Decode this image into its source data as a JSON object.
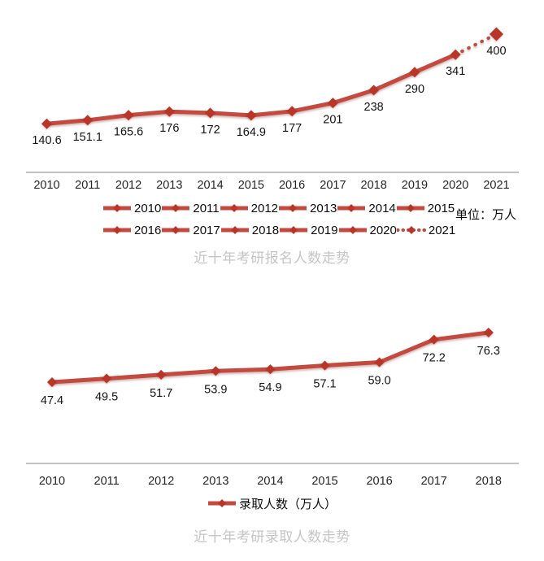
{
  "colors": {
    "line": "#C4493E",
    "marker": "#B93527",
    "axis": "#9E9E9E",
    "tick_text": "#262626",
    "value_text": "#141414",
    "title_text": "#C5C5C5",
    "legend_text": "#0D0D0D"
  },
  "chart_data": [
    {
      "type": "line",
      "title": "近十年考研报名人数走势",
      "unit_label": "单位：万人",
      "categories": [
        "2010",
        "2011",
        "2012",
        "2013",
        "2014",
        "2015",
        "2016",
        "2017",
        "2018",
        "2019",
        "2020",
        "2021"
      ],
      "values": [
        140.6,
        151.1,
        165.6,
        176,
        172,
        164.9,
        177,
        201,
        238,
        290,
        341,
        400
      ],
      "value_labels": [
        "140.6",
        "151.1",
        "165.6",
        "176",
        "172",
        "164.9",
        "177",
        "201",
        "238",
        "290",
        "341",
        "400"
      ],
      "legend_entries": [
        "2010",
        "2011",
        "2012",
        "2013",
        "2014",
        "2015",
        "2016",
        "2017",
        "2018",
        "2019",
        "2020",
        "2021"
      ],
      "legend_position": "bottom",
      "legend_rows": 2,
      "dotted_segment": {
        "from": "2020",
        "to": "2021"
      },
      "ylim": [
        0,
        500
      ],
      "grid": false,
      "y_axis_visible": false
    },
    {
      "type": "line",
      "title": "近十年考研录取人数走势",
      "categories": [
        "2010",
        "2011",
        "2012",
        "2013",
        "2014",
        "2015",
        "2016",
        "2017",
        "2018"
      ],
      "values": [
        47.4,
        49.5,
        51.7,
        53.9,
        54.9,
        57.1,
        59.0,
        72.2,
        76.3
      ],
      "value_labels": [
        "47.4",
        "49.5",
        "51.7",
        "53.9",
        "54.9",
        "57.1",
        "59.0",
        "72.2",
        "76.3"
      ],
      "legend_entries": [
        "录取人数（万人）"
      ],
      "legend_position": "bottom",
      "legend_rows": 1,
      "ylim": [
        0,
        90
      ],
      "grid": false,
      "y_axis_visible": false
    }
  ]
}
